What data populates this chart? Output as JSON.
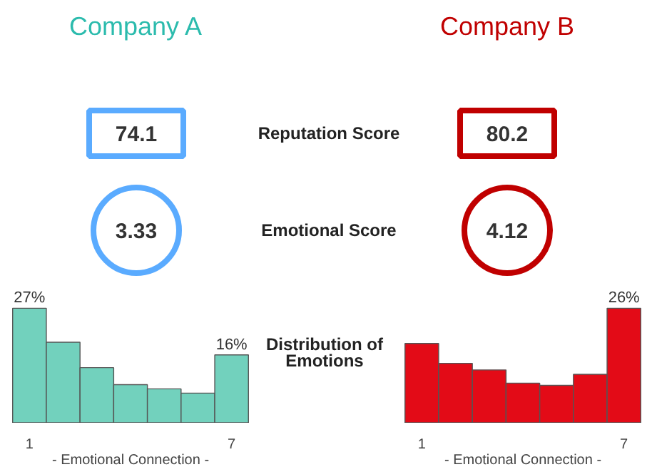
{
  "chart_data": [
    {
      "type": "other",
      "categories": [
        "Company A",
        "Company B"
      ],
      "colors": [
        "#2bbbad",
        "#c00000"
      ],
      "data_labels": true,
      "annotations": [
        "Distribution of Emotions"
      ],
      "series": [
        {
          "name": "Reputation Score",
          "colors": [
            "#5aabff",
            "#c00000"
          ],
          "values": [
            74.1,
            80.2
          ]
        },
        {
          "name": "Emotional Score",
          "colors": [
            "#5aabff",
            "#c00000"
          ],
          "values": [
            3.33,
            4.12
          ]
        }
      ]
    },
    {
      "type": "bar",
      "categories": [
        "1",
        null,
        null,
        null,
        null,
        null,
        "7"
      ],
      "xlabel": "- Emotional Connection -",
      "color": "#72d1bd",
      "values": [
        27,
        19,
        13,
        9,
        8,
        7,
        16
      ],
      "value_labels": [
        "27%",
        null,
        null,
        null,
        null,
        null,
        "16%"
      ],
      "tick_labels": "x"
    },
    {
      "type": "bar",
      "categories": [
        "1",
        null,
        null,
        null,
        null,
        null,
        "7"
      ],
      "xlabel": "- Emotional Connection -",
      "color": "#e30b17",
      "values": [
        18,
        13.5,
        12,
        9,
        8.5,
        11,
        26
      ],
      "value_labels": [
        null,
        null,
        null,
        null,
        null,
        null,
        "26%"
      ],
      "tick_labels": "x"
    }
  ]
}
